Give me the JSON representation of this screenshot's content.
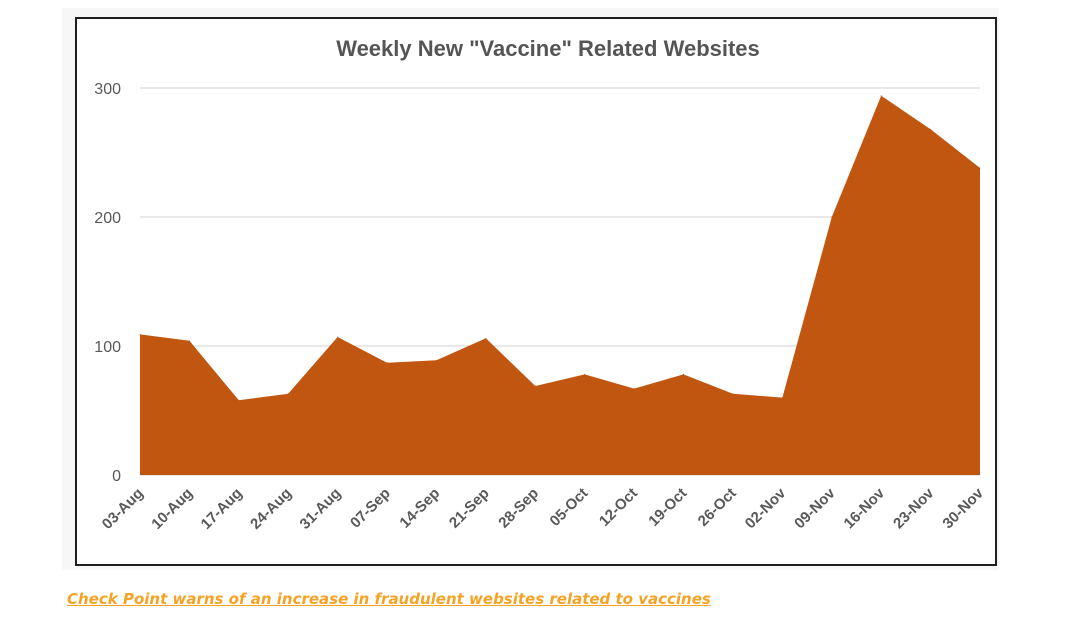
{
  "chart_data": {
    "type": "area",
    "title": "Weekly New \"Vaccine\" Related Websites",
    "xlabel": "",
    "ylabel": "",
    "categories": [
      "03-Aug",
      "10-Aug",
      "17-Aug",
      "24-Aug",
      "31-Aug",
      "07-Sep",
      "14-Sep",
      "21-Sep",
      "28-Sep",
      "05-Oct",
      "12-Oct",
      "19-Oct",
      "26-Oct",
      "02-Nov",
      "09-Nov",
      "16-Nov",
      "23-Nov",
      "30-Nov"
    ],
    "series": [
      {
        "values": [
          109,
          104,
          58,
          63,
          107,
          87,
          89,
          106,
          69,
          78,
          67,
          78,
          63,
          60,
          200,
          294,
          268,
          238
        ]
      }
    ],
    "yticks": [
      0,
      100,
      200,
      300
    ],
    "ylim": [
      0,
      300
    ],
    "grid": true,
    "legend": "none",
    "color": "#c0560f"
  },
  "caption": {
    "link_text": "Check Point warns of an increase in fraudulent websites related to vaccines"
  },
  "colors": {
    "area_fill": "#c0560f",
    "caption_link": "#f4a326",
    "gridline": "#d9d9d9"
  }
}
